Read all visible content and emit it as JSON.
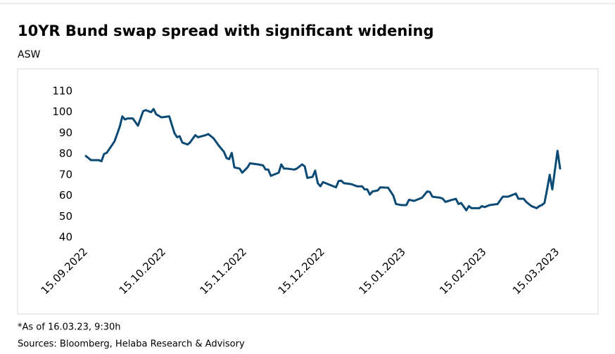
{
  "chart_data": {
    "type": "line",
    "title": "10YR Bund swap spread with significant widening",
    "subtitle": "ASW",
    "notes": [
      "*As of 16.03.23, 9:30h",
      "Sources: Bloomberg, Helaba Research & Advisory"
    ],
    "x": [
      "2022-09-15",
      "2022-09-17",
      "2022-09-20",
      "2022-09-21",
      "2022-09-22",
      "2022-09-23",
      "2022-09-26",
      "2022-09-28",
      "2022-09-29",
      "2022-09-30",
      "2022-10-01",
      "2022-10-03",
      "2022-10-05",
      "2022-10-07",
      "2022-10-08",
      "2022-10-10",
      "2022-10-11",
      "2022-10-12",
      "2022-10-14",
      "2022-10-17",
      "2022-10-19",
      "2022-10-20",
      "2022-10-21",
      "2022-10-22",
      "2022-10-24",
      "2022-10-25",
      "2022-10-27",
      "2022-10-28",
      "2022-10-31",
      "2022-11-01",
      "2022-11-03",
      "2022-11-05",
      "2022-11-07",
      "2022-11-08",
      "2022-11-09",
      "2022-11-10",
      "2022-11-11",
      "2022-11-13",
      "2022-11-14",
      "2022-11-16",
      "2022-11-17",
      "2022-11-20",
      "2022-11-22",
      "2022-11-23",
      "2022-11-24",
      "2022-11-25",
      "2022-11-27",
      "2022-11-28",
      "2022-11-29",
      "2022-11-30",
      "2022-12-01",
      "2022-12-04",
      "2022-12-05",
      "2022-12-07",
      "2022-12-08",
      "2022-12-09",
      "2022-12-11",
      "2022-12-12",
      "2022-12-13",
      "2022-12-14",
      "2022-12-15",
      "2022-12-18",
      "2022-12-20",
      "2022-12-21",
      "2022-12-22",
      "2022-12-23",
      "2022-12-26",
      "2022-12-27",
      "2022-12-28",
      "2022-12-30",
      "2022-12-31",
      "2023-01-01",
      "2023-01-02",
      "2023-01-03",
      "2023-01-05",
      "2023-01-06",
      "2023-01-09",
      "2023-01-11",
      "2023-01-12",
      "2023-01-14",
      "2023-01-16",
      "2023-01-17",
      "2023-01-19",
      "2023-01-22",
      "2023-01-24",
      "2023-01-25",
      "2023-01-26",
      "2023-01-29",
      "2023-01-30",
      "2023-01-31",
      "2023-02-02",
      "2023-02-04",
      "2023-02-05",
      "2023-02-06",
      "2023-02-08",
      "2023-02-09",
      "2023-02-10",
      "2023-02-13",
      "2023-02-14",
      "2023-02-15",
      "2023-02-17",
      "2023-02-20",
      "2023-02-22",
      "2023-02-24",
      "2023-02-26",
      "2023-02-27",
      "2023-02-28",
      "2023-03-02",
      "2023-03-03",
      "2023-03-05",
      "2023-03-07",
      "2023-03-08",
      "2023-03-09",
      "2023-03-10",
      "2023-03-11",
      "2023-03-12",
      "2023-03-13",
      "2023-03-15",
      "2023-03-16"
    ],
    "series": [
      {
        "name": "ASW",
        "color": "#0b4a74",
        "values": [
          79,
          77,
          77,
          76.5,
          80,
          80.5,
          86,
          93,
          98,
          96.5,
          97,
          97,
          93.5,
          100.5,
          101,
          100,
          101.5,
          99,
          97.5,
          98,
          90,
          88,
          88.5,
          85.5,
          84.5,
          85.5,
          89,
          88,
          89,
          89.5,
          87.5,
          84,
          81,
          78,
          77.5,
          80.5,
          73.5,
          73,
          71,
          73.5,
          75.5,
          75,
          74.5,
          72.5,
          72.5,
          69.5,
          70.5,
          71,
          75,
          73,
          73,
          72.5,
          73,
          75,
          74,
          68.5,
          69,
          72,
          66,
          64.5,
          66.5,
          65,
          64,
          67,
          67.2,
          66,
          65.5,
          65,
          64.5,
          64.5,
          63,
          63,
          60.5,
          62,
          62.5,
          64,
          63.8,
          60,
          56,
          55.5,
          55.5,
          58,
          57.5,
          59,
          62,
          61.8,
          59.5,
          59,
          58.5,
          57,
          57.8,
          58.5,
          56,
          56.5,
          53,
          55,
          54,
          54,
          55,
          54.5,
          55.5,
          56,
          59.5,
          59.5,
          60.5,
          61,
          58.5,
          58.5,
          57,
          55,
          54,
          55,
          55.5,
          56.5,
          63,
          70,
          63,
          81.5,
          73
        ]
      }
    ],
    "xlim": [
      "2022-09-15",
      "2023-03-16"
    ],
    "xticks": [
      {
        "value": "2022-09-15",
        "label": "15.09.2022"
      },
      {
        "value": "2022-10-15",
        "label": "15.10.2022"
      },
      {
        "value": "2022-11-15",
        "label": "15.11.2022"
      },
      {
        "value": "2022-12-15",
        "label": "15.12.2022"
      },
      {
        "value": "2023-01-15",
        "label": "15.01.2023"
      },
      {
        "value": "2023-02-15",
        "label": "15.02.2023"
      },
      {
        "value": "2023-03-15",
        "label": "15.03.2023"
      }
    ],
    "ylim": [
      40,
      110
    ],
    "yticks": [
      40,
      50,
      60,
      70,
      80,
      90,
      100,
      110
    ],
    "grid": false
  }
}
